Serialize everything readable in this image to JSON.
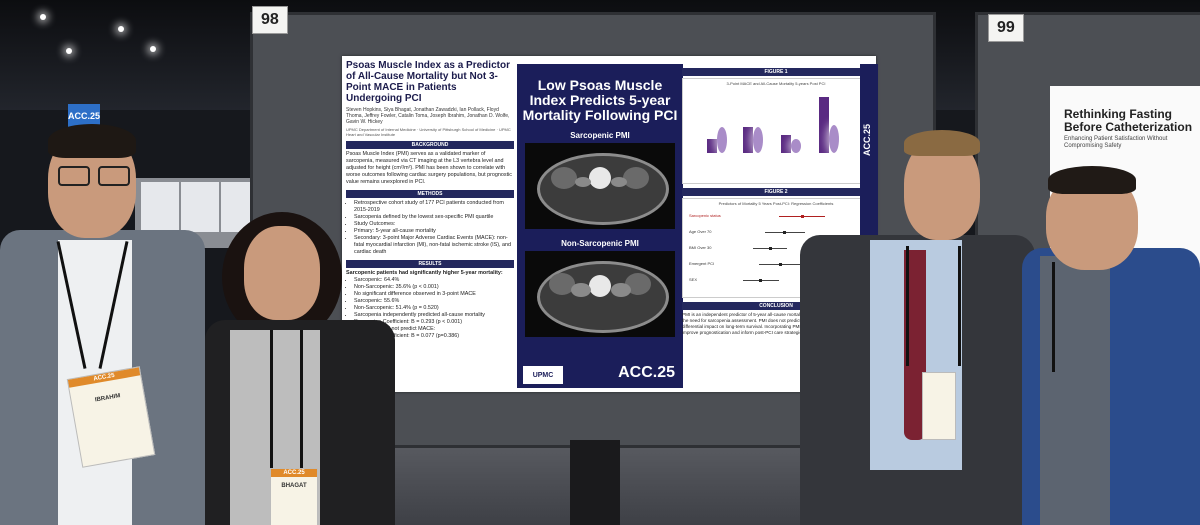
{
  "scene": {
    "board_numbers": [
      "98",
      "99"
    ],
    "hall_sign": "ACC.25"
  },
  "poster": {
    "title": "Psoas Muscle Index as a Predictor of All-Cause Mortality but Not 3-Point MACE in Patients Undergoing PCI",
    "authors": "Steven Hopkins, Siya Bhagat, Jonathan Zawadzki, Ian Pollack, Floyd Thoma, Jeffrey Fowler, Catalin Toma, Joseph Ibrahim, Jonathan D. Wolfe, Gavin W. Hickey",
    "affiliations": "UPMC Department of Internal Medicine · University of Pittsburgh School of Medicine · UPMC Heart and Vascular Institute",
    "sections": {
      "background": "BACKGROUND",
      "methods": "METHODS",
      "results": "RESULTS"
    },
    "background_text": "Psoas Muscle Index (PMI) serves as a validated marker of sarcopenia, measured via CT imaging at the L3 vertebra level and adjusted for height (cm²/m²). PMI has been shown to correlate with worse outcomes following cardiac surgery populations, but prognostic value remains unexplored in PCI.",
    "methods_items": [
      "Retrospective cohort study of 177 PCI patients conducted from 2015-2019",
      "Sarcopenia defined by the lowest sex-specific PMI quartile",
      "Study Outcomes:",
      "Primary: 5-year all-cause mortality",
      "Secondary: 3-point Major Adverse Cardiac Events (MACE): non-fatal myocardial infarction (MI), non-fatal ischemic stroke (IS), and cardiac death"
    ],
    "results_intro": "Sarcopenic patients had significantly higher 5-year mortality:",
    "results_items": [
      "Sarcopenic: 64.4%",
      "Non-Sarcopenic: 35.6% (p < 0.001)",
      "No significant difference observed in 3-point MACE",
      "Sarcopenic: 55.6%",
      "Non-Sarcopenic: 51.4% (p = 0.520)",
      "Sarcopenia independently predicted all-cause mortality",
      "Regression Coefficient: B = 0.293 (p < 0.001)",
      "Sarcopenia did not predict MACE:",
      "Regression Coefficient: B = 0.077 (p=0.386)"
    ],
    "center_title": "Low Psoas Muscle Index Predicts 5-year Mortality Following PCI",
    "center_label_1": "Sarcopenic PMI",
    "center_label_2": "Non-Sarcopenic PMI",
    "center_logo": "UPMC",
    "center_acc": "ACC.25",
    "figure1_label": "FIGURE 1",
    "figure1_caption": "3-Point MACE and All-Cause Mortality 5-years Post PCI",
    "figure2_label": "FIGURE 2",
    "figure2_caption": "Predictors of Mortality 5 Years Post-PCI: Regression Coefficients",
    "figure2_rows": [
      "Sarcopenic status",
      "Age Over 70",
      "BMI Over 30",
      "Emergent PCI",
      "SEX"
    ],
    "conclusion_label": "CONCLUSION",
    "conclusion_text": "PMI is an independent predictor of 5-year all-cause mortality in PCI patients, emphasizing the need for sarcopenia assessment. PMI does not predict 3-point MACE, indicating a differential impact on long-term survival. Incorporating PMI into risk assessments could improve prognostication and inform post-PCI care strategies.",
    "side_banner": "ACC.25"
  },
  "poster99": {
    "title": "Rethinking Fasting Before Catheterization",
    "subtitle": "Enhancing Patient Satisfaction Without Compromising Safety"
  },
  "badges": {
    "left_man": "IBRAHIM",
    "woman": "BHAGAT",
    "header": "ACC.25"
  }
}
